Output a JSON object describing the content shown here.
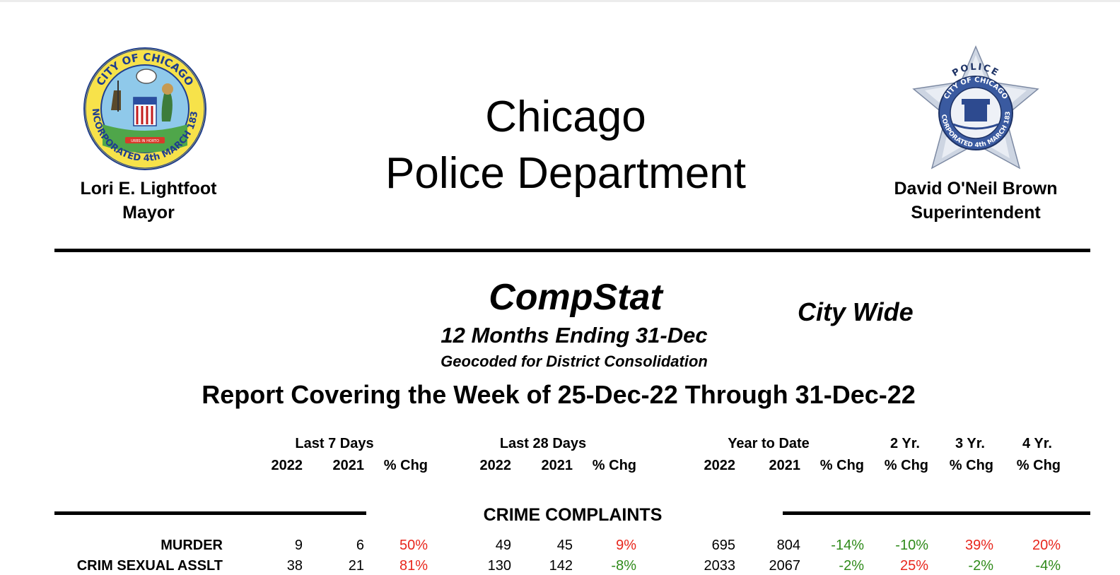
{
  "header": {
    "mayor_name": "Lori E. Lightfoot",
    "mayor_title": "Mayor",
    "title_line1": "Chicago",
    "title_line2": "Police Department",
    "super_name": "David O'Neil Brown",
    "super_title": "Superintendent",
    "city_seal_text_top": "CITY OF CHICAGO",
    "city_seal_text_bottom": "INCORPORATED 4th MARCH 1837",
    "city_seal_motto": "URBS IN HORTO",
    "badge_top": "POLICE",
    "badge_ring_top": "CITY OF CHICAGO",
    "badge_ring_bottom": "INCORPORATED 4th MARCH 1837"
  },
  "report": {
    "title": "CompStat",
    "area": "City Wide",
    "period": "12 Months Ending 31-Dec",
    "note": "Geocoded for District Consolidation",
    "coverage": "Report Covering the Week of 25-Dec-22 Through 31-Dec-22"
  },
  "columns": {
    "groups": [
      "Last 7 Days",
      "Last 28 Days",
      "Year to Date",
      "2 Yr.",
      "3 Yr.",
      "4 Yr."
    ],
    "sub": [
      "2022",
      "2021",
      "% Chg",
      "2022",
      "2021",
      "% Chg",
      "2022",
      "2021",
      "% Chg",
      "% Chg",
      "% Chg",
      "% Chg"
    ]
  },
  "section": "CRIME COMPLAINTS",
  "rows": [
    {
      "label": "MURDER",
      "values": [
        "9",
        "6",
        "50%",
        "49",
        "45",
        "9%",
        "695",
        "804",
        "-14%",
        "-10%",
        "39%",
        "20%"
      ],
      "colors": [
        "",
        "",
        "red",
        "",
        "",
        "red",
        "",
        "",
        "green",
        "green",
        "red",
        "red"
      ]
    },
    {
      "label": "CRIM SEXUAL ASSLT",
      "values": [
        "38",
        "21",
        "81%",
        "130",
        "142",
        "-8%",
        "2033",
        "2067",
        "-2%",
        "25%",
        "-2%",
        "-4%"
      ],
      "colors": [
        "",
        "",
        "red",
        "",
        "",
        "green",
        "",
        "",
        "green",
        "red",
        "green",
        "green"
      ]
    }
  ],
  "colors": {
    "increase": "#e8261c",
    "decrease": "#2f8a1a"
  }
}
